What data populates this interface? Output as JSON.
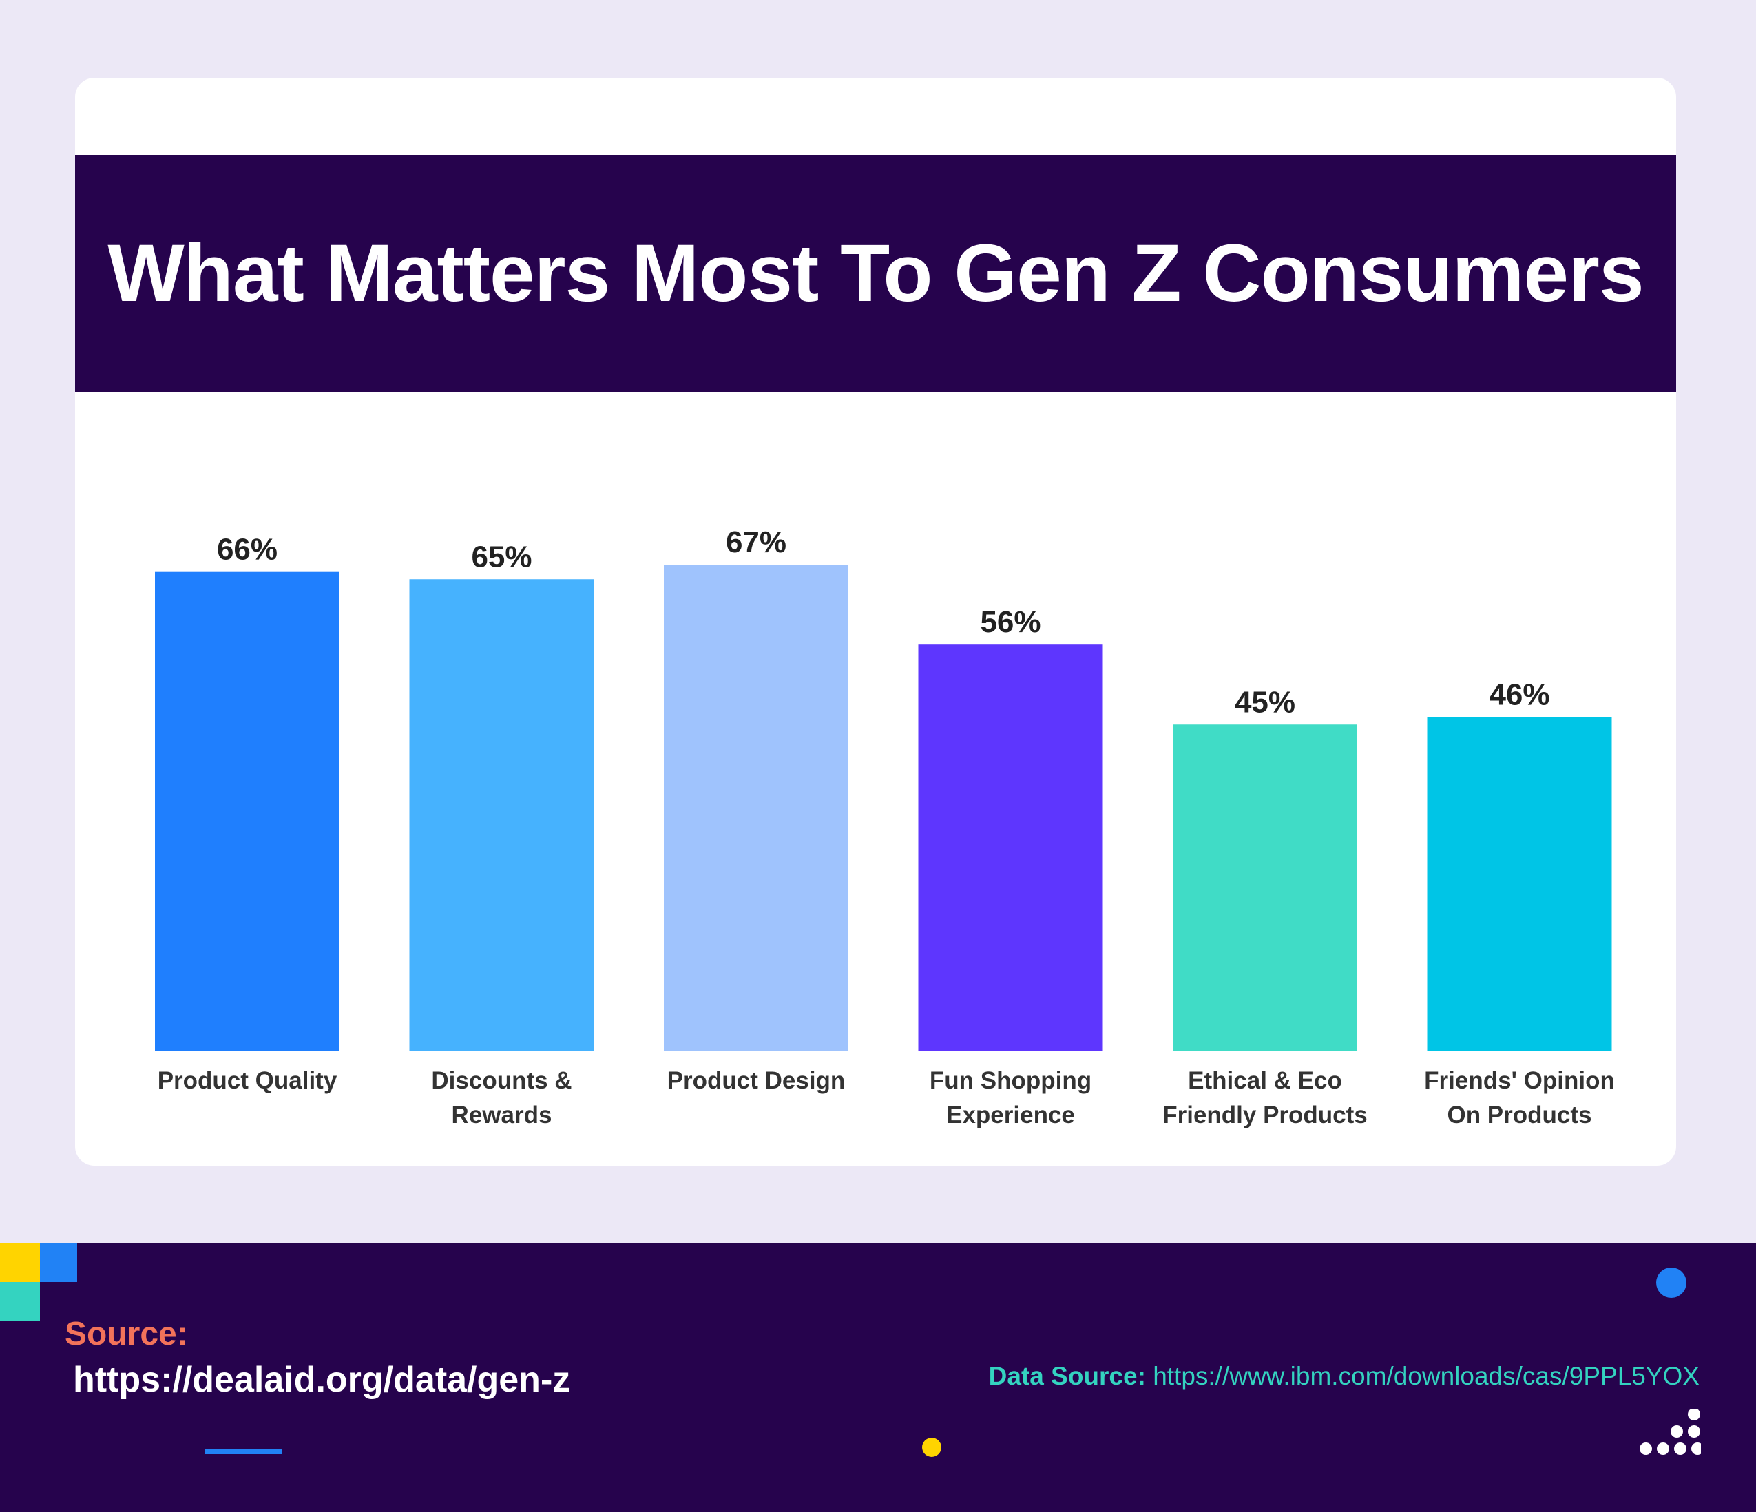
{
  "title": "What Matters Most To Gen Z Consumers",
  "chart_data": {
    "type": "bar",
    "title": "What Matters Most To Gen Z Consumers",
    "categories": [
      [
        "Product Quality"
      ],
      [
        "Discounts &",
        "Rewards"
      ],
      [
        "Product Design"
      ],
      [
        "Fun Shopping",
        "Experience"
      ],
      [
        "Ethical & Eco",
        "Friendly Products"
      ],
      [
        "Friends' Opinion",
        "On Products"
      ]
    ],
    "values": [
      66,
      65,
      67,
      56,
      45,
      46
    ],
    "value_labels": [
      "66%",
      "65%",
      "67%",
      "56%",
      "45%",
      "46%"
    ],
    "colors": [
      "#1f7ffe",
      "#46b2fe",
      "#9fc3fd",
      "#5e36fe",
      "#40dcc6",
      "#00c5e6"
    ],
    "unit": "%",
    "xlabel": "",
    "ylabel": "",
    "ylim": [
      0,
      100
    ],
    "grid": false
  },
  "footer": {
    "source_label": "Source:",
    "source_url": "https://dealaid.org/data/gen-z",
    "data_source_label": "Data Source:",
    "data_source_url": "https://www.ibm.com/downloads/cas/9PPL5YOX"
  }
}
